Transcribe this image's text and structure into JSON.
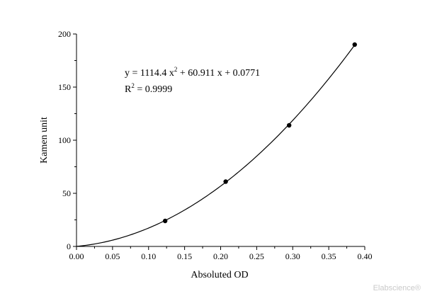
{
  "chart_data": {
    "type": "scatter",
    "title": "",
    "xlabel": "Absoluted OD",
    "ylabel": "Kamen unit",
    "xlim": [
      0,
      0.4
    ],
    "ylim": [
      0,
      200
    ],
    "x_ticks": [
      "0.00",
      "0.05",
      "0.10",
      "0.15",
      "0.20",
      "0.25",
      "0.30",
      "0.35",
      "0.40"
    ],
    "y_ticks": [
      "0",
      "50",
      "100",
      "150",
      "200"
    ],
    "grid": false,
    "legend": "none",
    "series": [
      {
        "type": "scatter",
        "x": [
          0.123,
          0.207,
          0.295,
          0.386
        ],
        "y": [
          24,
          61,
          114,
          190
        ]
      }
    ],
    "fit": {
      "type": "polynomial",
      "degree": 2,
      "coefficients": {
        "a": 1114.4,
        "b": 60.911,
        "c": 0.0771
      },
      "x_range": [
        0,
        0.386
      ]
    },
    "annotation": {
      "eq_lhs": "y = 1114.4 x",
      "eq_sup": "2",
      "eq_rhs": " + 60.911 x + 0.0771",
      "r2_lhs": "R",
      "r2_sup": "2",
      "r2_rhs": " = 0.9999"
    }
  },
  "watermark": "Elabscience®"
}
